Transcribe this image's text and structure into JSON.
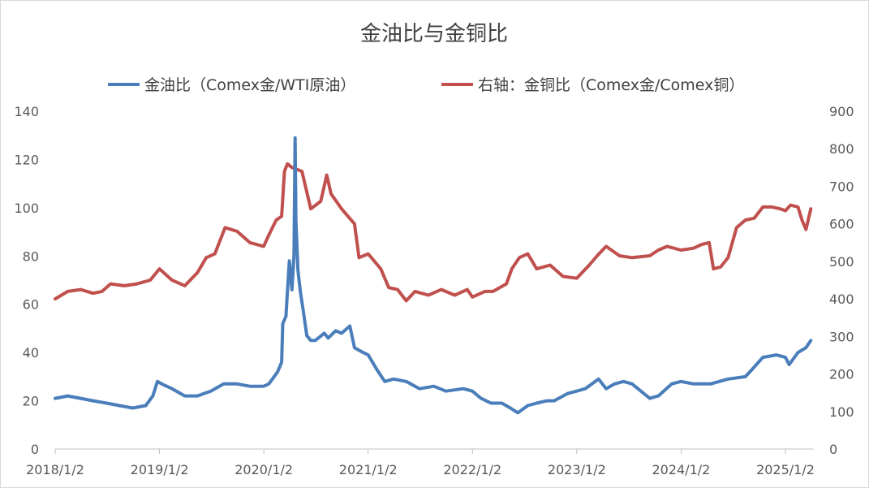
{
  "chart_data": {
    "type": "line",
    "title": "金油比与金铜比",
    "legend_position": "top",
    "grid": false,
    "x_ticks": [
      "2018/1/2",
      "2019/1/2",
      "2020/1/2",
      "2021/1/2",
      "2022/1/2",
      "2023/1/2",
      "2024/1/2",
      "2025/1/2"
    ],
    "x_range": [
      "2018-01-02",
      "2025-04-01"
    ],
    "y_left": {
      "ylim": [
        0,
        140
      ],
      "ticks": [
        "0",
        "20",
        "40",
        "60",
        "80",
        "100",
        "120",
        "140"
      ]
    },
    "y_right": {
      "ylim": [
        0,
        900
      ],
      "ticks": [
        "0",
        "100",
        "200",
        "300",
        "400",
        "500",
        "600",
        "700",
        "800",
        "900"
      ]
    },
    "series": [
      {
        "name": "金油比（Comex金/WTI原油）",
        "axis": "left",
        "color": "#4a7ebb",
        "points": [
          [
            "2018-01-02",
            21
          ],
          [
            "2018-02-15",
            22
          ],
          [
            "2018-04-01",
            21
          ],
          [
            "2018-05-15",
            20
          ],
          [
            "2018-07-01",
            19
          ],
          [
            "2018-08-15",
            18
          ],
          [
            "2018-10-01",
            17
          ],
          [
            "2018-11-15",
            18
          ],
          [
            "2018-12-10",
            22
          ],
          [
            "2018-12-26",
            28
          ],
          [
            "2019-01-10",
            27
          ],
          [
            "2019-02-15",
            25
          ],
          [
            "2019-04-01",
            22
          ],
          [
            "2019-05-15",
            22
          ],
          [
            "2019-07-01",
            24
          ],
          [
            "2019-08-15",
            27
          ],
          [
            "2019-10-01",
            27
          ],
          [
            "2019-11-15",
            26
          ],
          [
            "2020-01-02",
            26
          ],
          [
            "2020-01-20",
            27
          ],
          [
            "2020-02-20",
            32
          ],
          [
            "2020-03-05",
            36
          ],
          [
            "2020-03-09",
            52
          ],
          [
            "2020-03-20",
            55
          ],
          [
            "2020-03-25",
            65
          ],
          [
            "2020-04-01",
            78
          ],
          [
            "2020-04-10",
            66
          ],
          [
            "2020-04-17",
            80
          ],
          [
            "2020-04-21",
            129
          ],
          [
            "2020-04-24",
            95
          ],
          [
            "2020-05-01",
            74
          ],
          [
            "2020-05-10",
            65
          ],
          [
            "2020-05-20",
            57
          ],
          [
            "2020-06-01",
            47
          ],
          [
            "2020-06-15",
            45
          ],
          [
            "2020-07-01",
            45
          ],
          [
            "2020-08-01",
            48
          ],
          [
            "2020-08-15",
            46
          ],
          [
            "2020-09-10",
            49
          ],
          [
            "2020-10-01",
            48
          ],
          [
            "2020-10-30",
            51
          ],
          [
            "2020-11-15",
            42
          ],
          [
            "2020-12-15",
            40
          ],
          [
            "2021-01-02",
            39
          ],
          [
            "2021-02-01",
            33
          ],
          [
            "2021-03-01",
            28
          ],
          [
            "2021-04-01",
            29
          ],
          [
            "2021-05-15",
            28
          ],
          [
            "2021-07-01",
            25
          ],
          [
            "2021-08-20",
            26
          ],
          [
            "2021-10-01",
            24
          ],
          [
            "2021-12-01",
            25
          ],
          [
            "2022-01-02",
            24
          ],
          [
            "2022-02-01",
            21
          ],
          [
            "2022-03-08",
            19
          ],
          [
            "2022-04-15",
            19
          ],
          [
            "2022-05-15",
            17
          ],
          [
            "2022-06-10",
            15
          ],
          [
            "2022-07-15",
            18
          ],
          [
            "2022-08-15",
            19
          ],
          [
            "2022-09-20",
            20
          ],
          [
            "2022-10-15",
            20
          ],
          [
            "2022-12-01",
            23
          ],
          [
            "2023-01-02",
            24
          ],
          [
            "2023-02-01",
            25
          ],
          [
            "2023-03-20",
            29
          ],
          [
            "2023-04-15",
            25
          ],
          [
            "2023-05-15",
            27
          ],
          [
            "2023-06-15",
            28
          ],
          [
            "2023-07-15",
            27
          ],
          [
            "2023-09-15",
            21
          ],
          [
            "2023-10-15",
            22
          ],
          [
            "2023-12-01",
            27
          ],
          [
            "2024-01-02",
            28
          ],
          [
            "2024-02-15",
            27
          ],
          [
            "2024-04-15",
            27
          ],
          [
            "2024-06-15",
            29
          ],
          [
            "2024-08-15",
            30
          ],
          [
            "2024-09-15",
            34
          ],
          [
            "2024-10-15",
            38
          ],
          [
            "2024-12-01",
            39
          ],
          [
            "2025-01-02",
            38
          ],
          [
            "2025-01-15",
            35
          ],
          [
            "2025-02-15",
            40
          ],
          [
            "2025-03-15",
            42
          ],
          [
            "2025-04-01",
            45
          ]
        ]
      },
      {
        "name": "右轴：金铜比（Comex金/Comex铜）",
        "axis": "right",
        "color": "#c0504d",
        "points": [
          [
            "2018-01-02",
            400
          ],
          [
            "2018-02-15",
            420
          ],
          [
            "2018-04-01",
            425
          ],
          [
            "2018-05-15",
            415
          ],
          [
            "2018-06-15",
            420
          ],
          [
            "2018-07-15",
            440
          ],
          [
            "2018-09-01",
            435
          ],
          [
            "2018-10-15",
            440
          ],
          [
            "2018-12-01",
            450
          ],
          [
            "2019-01-02",
            480
          ],
          [
            "2019-02-15",
            450
          ],
          [
            "2019-04-01",
            435
          ],
          [
            "2019-05-15",
            470
          ],
          [
            "2019-06-15",
            510
          ],
          [
            "2019-07-15",
            520
          ],
          [
            "2019-08-20",
            590
          ],
          [
            "2019-10-01",
            580
          ],
          [
            "2019-11-15",
            550
          ],
          [
            "2020-01-02",
            540
          ],
          [
            "2020-01-20",
            570
          ],
          [
            "2020-02-15",
            610
          ],
          [
            "2020-03-05",
            620
          ],
          [
            "2020-03-15",
            740
          ],
          [
            "2020-03-25",
            760
          ],
          [
            "2020-04-10",
            750
          ],
          [
            "2020-05-15",
            740
          ],
          [
            "2020-06-15",
            640
          ],
          [
            "2020-07-20",
            660
          ],
          [
            "2020-08-10",
            730
          ],
          [
            "2020-08-25",
            680
          ],
          [
            "2020-10-01",
            640
          ],
          [
            "2020-11-15",
            600
          ],
          [
            "2020-12-01",
            510
          ],
          [
            "2021-01-02",
            520
          ],
          [
            "2021-02-15",
            480
          ],
          [
            "2021-03-15",
            430
          ],
          [
            "2021-04-15",
            425
          ],
          [
            "2021-05-15",
            395
          ],
          [
            "2021-06-15",
            420
          ],
          [
            "2021-08-01",
            410
          ],
          [
            "2021-09-15",
            425
          ],
          [
            "2021-11-01",
            410
          ],
          [
            "2021-12-15",
            425
          ],
          [
            "2022-01-02",
            405
          ],
          [
            "2022-02-15",
            420
          ],
          [
            "2022-03-15",
            420
          ],
          [
            "2022-05-01",
            440
          ],
          [
            "2022-05-20",
            480
          ],
          [
            "2022-06-15",
            510
          ],
          [
            "2022-07-15",
            520
          ],
          [
            "2022-08-15",
            480
          ],
          [
            "2022-10-01",
            490
          ],
          [
            "2022-11-15",
            460
          ],
          [
            "2023-01-02",
            455
          ],
          [
            "2023-02-15",
            490
          ],
          [
            "2023-03-15",
            515
          ],
          [
            "2023-04-15",
            540
          ],
          [
            "2023-06-01",
            515
          ],
          [
            "2023-07-15",
            510
          ],
          [
            "2023-09-15",
            515
          ],
          [
            "2023-10-15",
            530
          ],
          [
            "2023-11-15",
            540
          ],
          [
            "2024-01-02",
            530
          ],
          [
            "2024-02-15",
            535
          ],
          [
            "2024-03-15",
            545
          ],
          [
            "2024-04-10",
            550
          ],
          [
            "2024-04-25",
            480
          ],
          [
            "2024-05-20",
            485
          ],
          [
            "2024-06-15",
            510
          ],
          [
            "2024-07-15",
            590
          ],
          [
            "2024-08-15",
            610
          ],
          [
            "2024-09-15",
            615
          ],
          [
            "2024-10-15",
            645
          ],
          [
            "2024-11-15",
            645
          ],
          [
            "2024-12-15",
            640
          ],
          [
            "2025-01-02",
            635
          ],
          [
            "2025-01-20",
            650
          ],
          [
            "2025-02-15",
            645
          ],
          [
            "2025-03-01",
            610
          ],
          [
            "2025-03-15",
            585
          ],
          [
            "2025-04-01",
            640
          ]
        ]
      }
    ]
  }
}
